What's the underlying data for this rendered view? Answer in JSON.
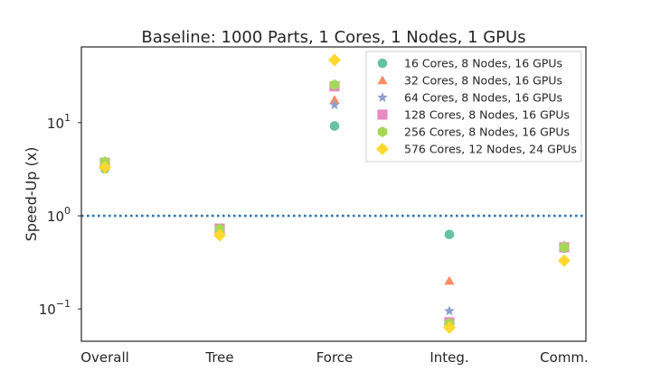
{
  "chart_data": {
    "type": "scatter",
    "title": "Baseline: 1000 Parts, 1 Cores, 1 Nodes, 1 GPUs",
    "xlabel": "",
    "ylabel": "Speed-Up (x)",
    "yscale": "log",
    "ylim": [
      0.045,
      65
    ],
    "categories": [
      "Overall",
      "Tree",
      "Force",
      "Integ.",
      "Comm."
    ],
    "y_ticks": [
      {
        "value": 0.1,
        "base": "10",
        "exp": "−1"
      },
      {
        "value": 1,
        "base": "10",
        "exp": "0"
      },
      {
        "value": 10,
        "base": "10",
        "exp": "1"
      }
    ],
    "reference_line": {
      "value": 1.0,
      "style": "dotted",
      "color": "#2e75b6"
    },
    "legend_position": "top-right",
    "grid": false,
    "series": [
      {
        "name": "16 Cores, 8 Nodes, 16 GPUs",
        "marker": "circle",
        "color": "#66c2a5",
        "values": [
          3.2,
          0.72,
          9.2,
          0.63,
          0.45
        ]
      },
      {
        "name": "32 Cores, 8 Nodes, 16 GPUs",
        "marker": "triangle",
        "color": "#fc8d62",
        "values": [
          3.6,
          0.72,
          17.5,
          0.2,
          0.48
        ]
      },
      {
        "name": "64 Cores, 8 Nodes, 16 GPUs",
        "marker": "star",
        "color": "#8da0cb",
        "values": [
          3.6,
          0.72,
          15.5,
          0.095,
          0.47
        ]
      },
      {
        "name": "128 Cores, 8 Nodes, 16 GPUs",
        "marker": "square",
        "color": "#e78ac3",
        "values": [
          3.7,
          0.73,
          24.5,
          0.072,
          0.46
        ]
      },
      {
        "name": "256 Cores, 8 Nodes, 16 GPUs",
        "marker": "hexagon",
        "color": "#a6d854",
        "values": [
          3.8,
          0.72,
          25.5,
          0.07,
          0.46
        ]
      },
      {
        "name": "576 Cores, 12 Nodes, 24 GPUs",
        "marker": "diamond",
        "color": "#ffd92f",
        "values": [
          3.3,
          0.62,
          47,
          0.063,
          0.33
        ]
      }
    ]
  }
}
